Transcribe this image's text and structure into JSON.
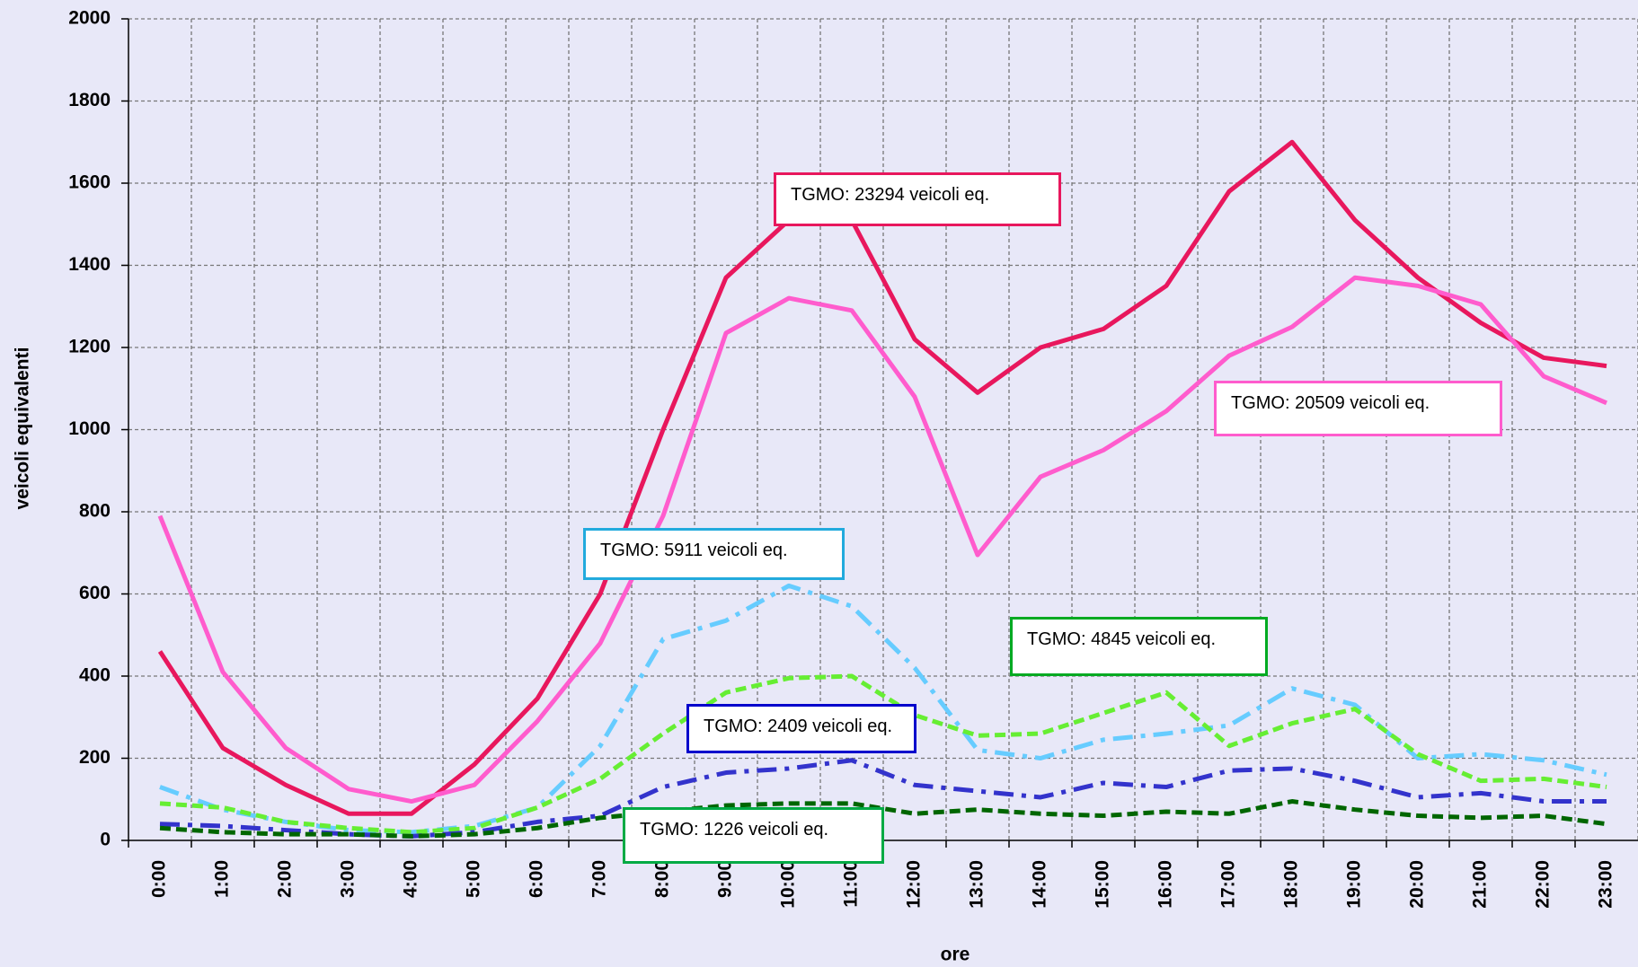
{
  "chart_data": {
    "type": "line",
    "x_label": "ore",
    "y_label": "veicoli equivalenti",
    "categories": [
      "0:00",
      "1:00",
      "2:00",
      "3:00",
      "4:00",
      "5:00",
      "6:00",
      "7:00",
      "8:00",
      "9:00",
      "10:00",
      "11:00",
      "12:00",
      "13:00",
      "14:00",
      "15:00",
      "16:00",
      "17:00",
      "18:00",
      "19:00",
      "20:00",
      "21:00",
      "22:00",
      "23:00"
    ],
    "ylim": [
      0,
      2000
    ],
    "yticks": [
      0,
      200,
      400,
      600,
      800,
      1000,
      1200,
      1400,
      1600,
      1800,
      2000
    ],
    "grid": true,
    "series": [
      {
        "color": "#e8175d",
        "style": "solid",
        "values": [
          460,
          225,
          135,
          65,
          65,
          185,
          345,
          600,
          1000,
          1370,
          1510,
          1510,
          1220,
          1090,
          1200,
          1245,
          1350,
          1580,
          1700,
          1510,
          1370,
          1260,
          1175,
          1155
        ]
      },
      {
        "color": "#ff5ccd",
        "style": "solid",
        "values": [
          790,
          410,
          225,
          125,
          95,
          135,
          290,
          480,
          790,
          1235,
          1320,
          1290,
          1080,
          695,
          885,
          950,
          1045,
          1180,
          1250,
          1370,
          1350,
          1305,
          1130,
          1065
        ]
      },
      {
        "color": "#66ccff",
        "style": "dashdot",
        "values": [
          130,
          75,
          45,
          25,
          20,
          35,
          80,
          230,
          490,
          535,
          620,
          570,
          420,
          220,
          200,
          245,
          260,
          280,
          370,
          330,
          200,
          210,
          195,
          160
        ]
      },
      {
        "color": "#66ee33",
        "style": "dashed",
        "values": [
          90,
          80,
          45,
          30,
          20,
          30,
          80,
          150,
          260,
          360,
          395,
          400,
          305,
          255,
          260,
          310,
          360,
          230,
          285,
          320,
          210,
          145,
          150,
          130
        ]
      },
      {
        "color": "#3333cc",
        "style": "dashdot",
        "values": [
          40,
          35,
          25,
          15,
          10,
          20,
          45,
          60,
          130,
          165,
          175,
          195,
          135,
          120,
          105,
          140,
          130,
          170,
          175,
          145,
          105,
          115,
          95,
          95
        ]
      },
      {
        "color": "#006600",
        "style": "dashed",
        "values": [
          30,
          20,
          15,
          15,
          10,
          15,
          30,
          55,
          70,
          85,
          90,
          90,
          65,
          75,
          65,
          60,
          70,
          65,
          95,
          75,
          60,
          55,
          60,
          40
        ]
      }
    ],
    "annotations": [
      {
        "text": "TGMO: 23294 veicoli eq.",
        "color": "#e8175d"
      },
      {
        "text": "TGMO: 20509 veicoli eq.",
        "color": "#ff5ccd"
      },
      {
        "text": "TGMO: 5911 veicoli eq.",
        "color": "#22aadd"
      },
      {
        "text": "TGMO: 4845 veicoli eq.",
        "color": "#00aa22"
      },
      {
        "text": "TGMO: 2409 veicoli eq.",
        "color": "#0000cc"
      },
      {
        "text": "TGMO: 1226 veicoli eq.",
        "color": "#00aa44"
      }
    ]
  }
}
